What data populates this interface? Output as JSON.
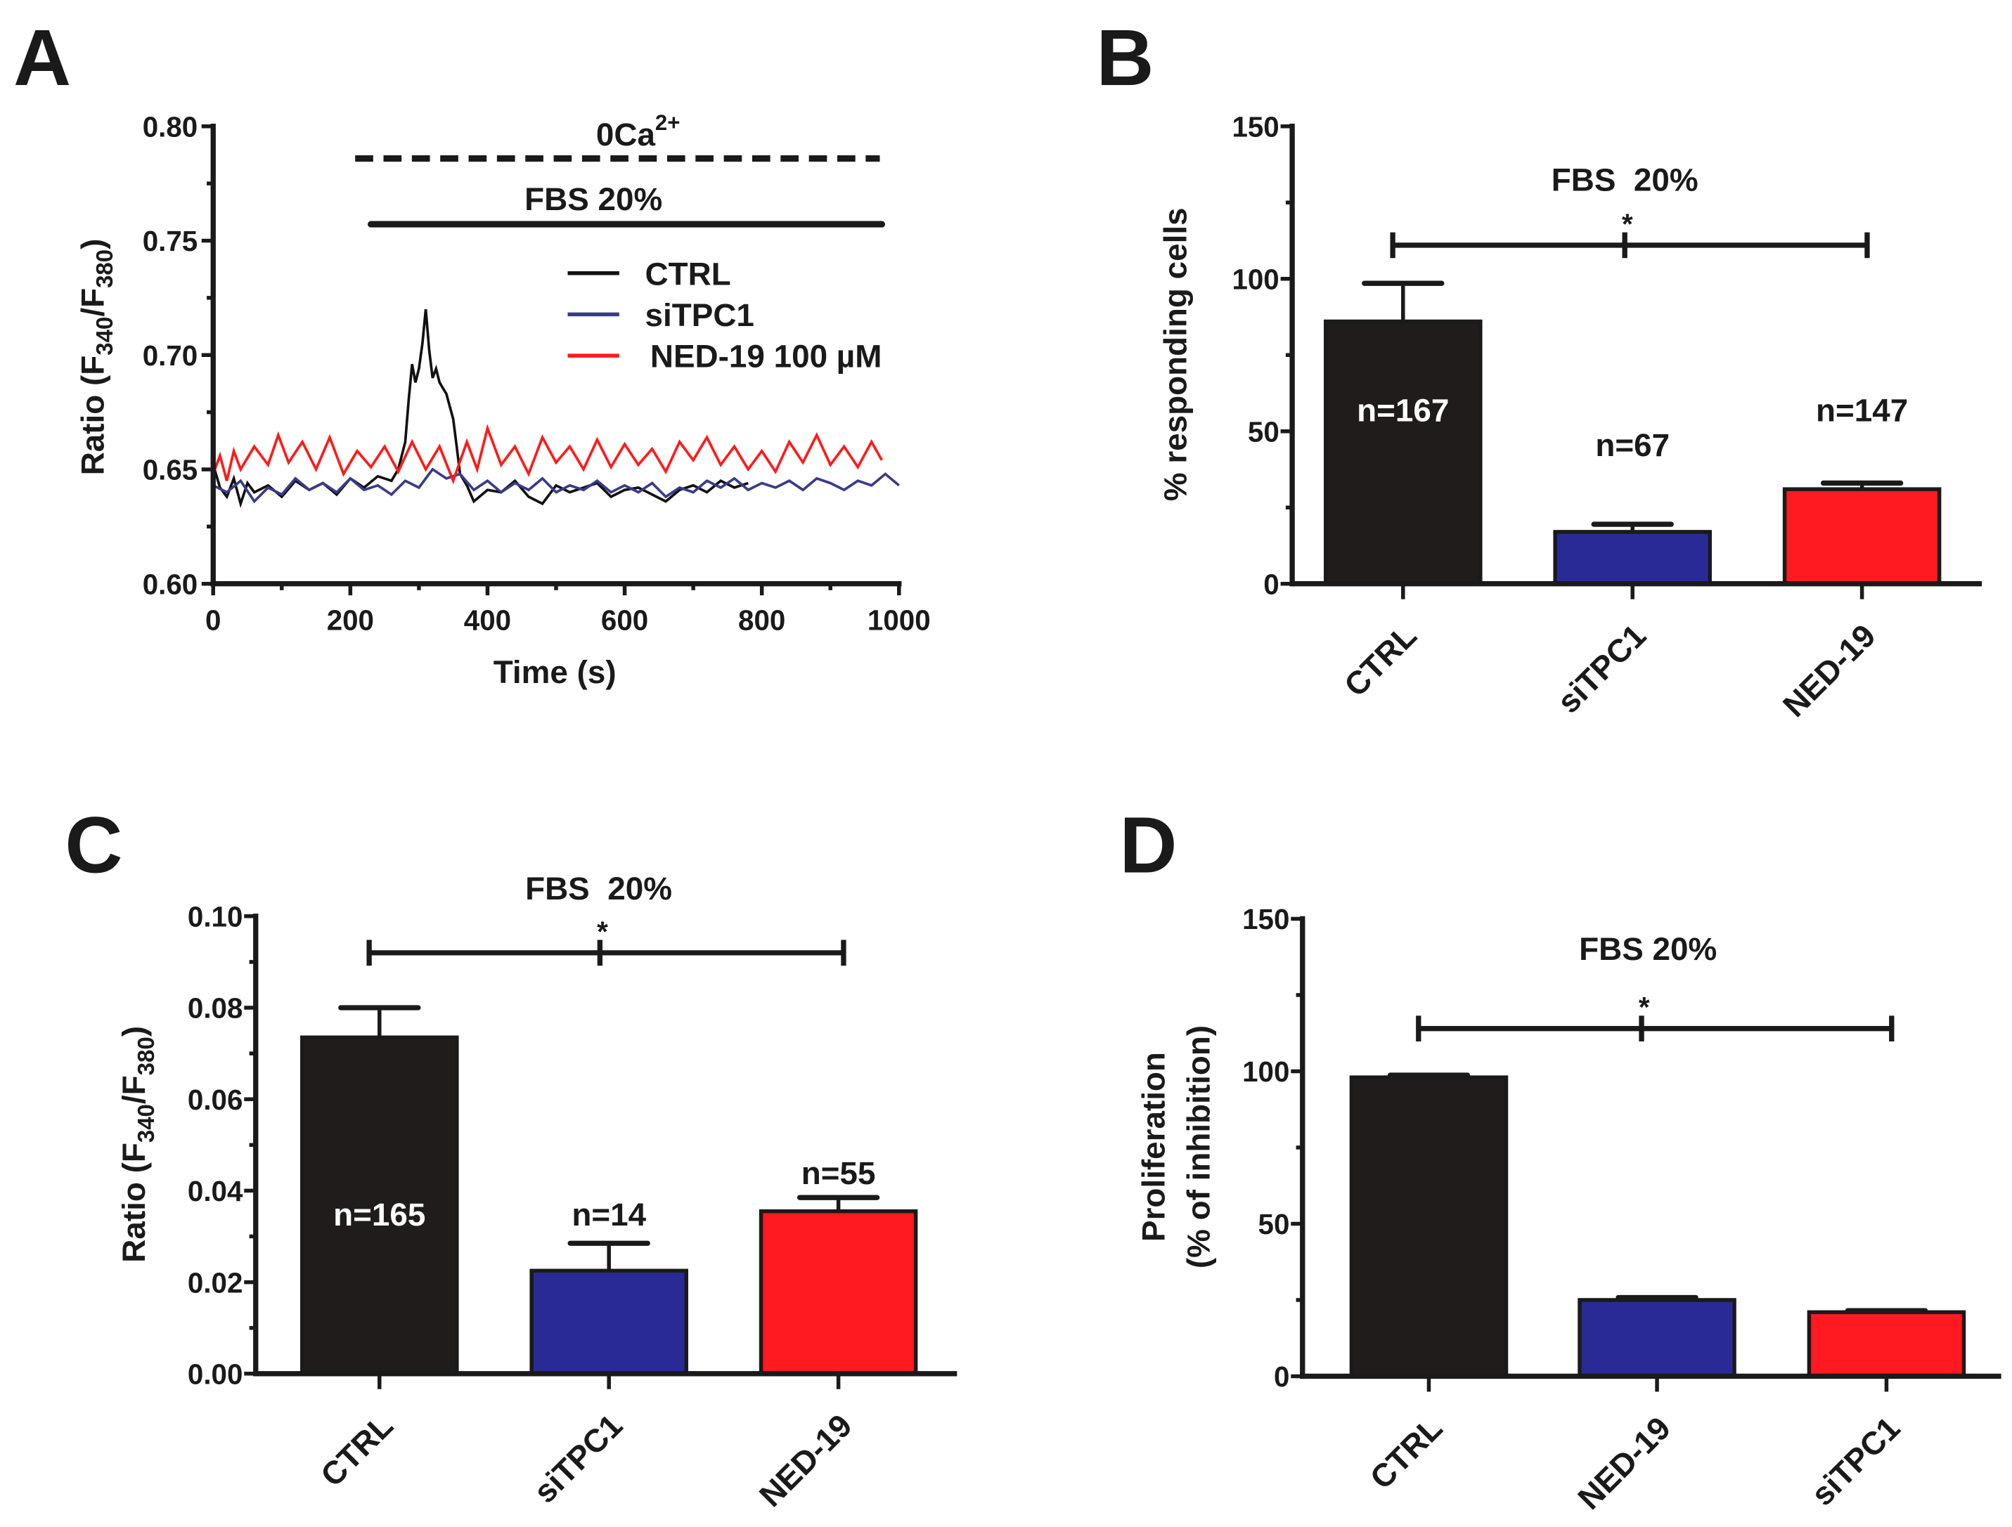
{
  "chart_data": [
    {
      "panel": "A",
      "type": "line",
      "xlabel": "Time (s)",
      "ylabel_parts": [
        "Ratio (F",
        "340",
        "/F",
        "380",
        ")"
      ],
      "xlim": [
        0,
        1000
      ],
      "ylim": [
        0.6,
        0.8
      ],
      "xticks": [
        "0",
        "200",
        "400",
        "600",
        "800",
        "1000"
      ],
      "yticks": [
        "0.60",
        "0.65",
        "0.70",
        "0.75",
        "0.80"
      ],
      "grid": false,
      "legend_placement": "upper-right",
      "annotations": {
        "zero_ca": {
          "label": "0Ca",
          "sup": "2+",
          "style": "dashed",
          "x_range": [
            207,
            972
          ]
        },
        "fbs": {
          "label": "FBS 20%",
          "style": "solid",
          "x_range": [
            230,
            975
          ]
        }
      },
      "series": [
        {
          "name": "CTRL",
          "color": "#111111",
          "points": [
            [
              0,
              0.652
            ],
            [
              10,
              0.642
            ],
            [
              20,
              0.638
            ],
            [
              30,
              0.646
            ],
            [
              40,
              0.635
            ],
            [
              50,
              0.644
            ],
            [
              60,
              0.64
            ],
            [
              80,
              0.643
            ],
            [
              100,
              0.638
            ],
            [
              120,
              0.645
            ],
            [
              140,
              0.641
            ],
            [
              160,
              0.644
            ],
            [
              180,
              0.639
            ],
            [
              200,
              0.646
            ],
            [
              220,
              0.642
            ],
            [
              240,
              0.647
            ],
            [
              260,
              0.645
            ],
            [
              270,
              0.65
            ],
            [
              280,
              0.662
            ],
            [
              285,
              0.68
            ],
            [
              290,
              0.696
            ],
            [
              295,
              0.688
            ],
            [
              300,
              0.694
            ],
            [
              305,
              0.705
            ],
            [
              310,
              0.72
            ],
            [
              315,
              0.702
            ],
            [
              320,
              0.69
            ],
            [
              325,
              0.694
            ],
            [
              330,
              0.688
            ],
            [
              340,
              0.683
            ],
            [
              350,
              0.672
            ],
            [
              355,
              0.66
            ],
            [
              360,
              0.648
            ],
            [
              370,
              0.643
            ],
            [
              380,
              0.636
            ],
            [
              400,
              0.641
            ],
            [
              420,
              0.64
            ],
            [
              440,
              0.645
            ],
            [
              460,
              0.638
            ],
            [
              480,
              0.635
            ],
            [
              500,
              0.643
            ],
            [
              520,
              0.64
            ],
            [
              540,
              0.642
            ],
            [
              560,
              0.644
            ],
            [
              580,
              0.638
            ],
            [
              600,
              0.641
            ],
            [
              620,
              0.642
            ],
            [
              640,
              0.639
            ],
            [
              660,
              0.636
            ],
            [
              680,
              0.641
            ],
            [
              700,
              0.643
            ],
            [
              720,
              0.64
            ],
            [
              740,
              0.645
            ],
            [
              760,
              0.642
            ],
            [
              780,
              0.644
            ]
          ]
        },
        {
          "name": "siTPC1",
          "color": "#3a3a8c",
          "points": [
            [
              0,
              0.643
            ],
            [
              20,
              0.64
            ],
            [
              40,
              0.645
            ],
            [
              60,
              0.636
            ],
            [
              80,
              0.642
            ],
            [
              100,
              0.639
            ],
            [
              120,
              0.646
            ],
            [
              140,
              0.641
            ],
            [
              160,
              0.644
            ],
            [
              180,
              0.64
            ],
            [
              200,
              0.646
            ],
            [
              220,
              0.641
            ],
            [
              240,
              0.643
            ],
            [
              260,
              0.639
            ],
            [
              280,
              0.645
            ],
            [
              300,
              0.642
            ],
            [
              320,
              0.65
            ],
            [
              340,
              0.646
            ],
            [
              360,
              0.648
            ],
            [
              380,
              0.641
            ],
            [
              400,
              0.645
            ],
            [
              420,
              0.64
            ],
            [
              440,
              0.644
            ],
            [
              460,
              0.641
            ],
            [
              480,
              0.646
            ],
            [
              500,
              0.64
            ],
            [
              520,
              0.643
            ],
            [
              540,
              0.641
            ],
            [
              560,
              0.645
            ],
            [
              580,
              0.64
            ],
            [
              600,
              0.643
            ],
            [
              620,
              0.64
            ],
            [
              640,
              0.644
            ],
            [
              660,
              0.638
            ],
            [
              680,
              0.642
            ],
            [
              700,
              0.64
            ],
            [
              720,
              0.645
            ],
            [
              740,
              0.642
            ],
            [
              760,
              0.646
            ],
            [
              780,
              0.641
            ],
            [
              800,
              0.644
            ],
            [
              820,
              0.642
            ],
            [
              840,
              0.645
            ],
            [
              860,
              0.641
            ],
            [
              880,
              0.646
            ],
            [
              900,
              0.644
            ],
            [
              920,
              0.641
            ],
            [
              940,
              0.645
            ],
            [
              960,
              0.643
            ],
            [
              980,
              0.648
            ],
            [
              1000,
              0.643
            ]
          ]
        },
        {
          "name": "NED-19 100 µM",
          "color": "#ff1a1a",
          "points": [
            [
              0,
              0.648
            ],
            [
              10,
              0.656
            ],
            [
              20,
              0.645
            ],
            [
              30,
              0.658
            ],
            [
              40,
              0.65
            ],
            [
              60,
              0.66
            ],
            [
              80,
              0.652
            ],
            [
              95,
              0.665
            ],
            [
              110,
              0.653
            ],
            [
              130,
              0.662
            ],
            [
              150,
              0.65
            ],
            [
              170,
              0.664
            ],
            [
              190,
              0.648
            ],
            [
              210,
              0.658
            ],
            [
              230,
              0.651
            ],
            [
              250,
              0.66
            ],
            [
              270,
              0.649
            ],
            [
              290,
              0.662
            ],
            [
              310,
              0.65
            ],
            [
              330,
              0.66
            ],
            [
              350,
              0.645
            ],
            [
              370,
              0.662
            ],
            [
              385,
              0.65
            ],
            [
              400,
              0.668
            ],
            [
              420,
              0.652
            ],
            [
              440,
              0.66
            ],
            [
              460,
              0.648
            ],
            [
              480,
              0.664
            ],
            [
              500,
              0.653
            ],
            [
              520,
              0.66
            ],
            [
              540,
              0.65
            ],
            [
              560,
              0.663
            ],
            [
              580,
              0.651
            ],
            [
              600,
              0.661
            ],
            [
              620,
              0.652
            ],
            [
              640,
              0.659
            ],
            [
              660,
              0.649
            ],
            [
              680,
              0.662
            ],
            [
              700,
              0.654
            ],
            [
              720,
              0.664
            ],
            [
              740,
              0.652
            ],
            [
              760,
              0.66
            ],
            [
              780,
              0.65
            ],
            [
              800,
              0.658
            ],
            [
              820,
              0.649
            ],
            [
              840,
              0.662
            ],
            [
              860,
              0.653
            ],
            [
              880,
              0.665
            ],
            [
              900,
              0.652
            ],
            [
              920,
              0.66
            ],
            [
              940,
              0.651
            ],
            [
              960,
              0.662
            ],
            [
              975,
              0.654
            ]
          ]
        }
      ]
    },
    {
      "panel": "B",
      "type": "bar",
      "title": "FBS  20%",
      "ylabel": "% responding cells",
      "ylim": [
        0,
        150
      ],
      "yticks": [
        "0",
        "50",
        "100",
        "150"
      ],
      "categories": [
        "CTRL",
        "siTPC1",
        "NED-19"
      ],
      "values": [
        86,
        17,
        31
      ],
      "errors": [
        12.5,
        2.5,
        2
      ],
      "colors": [
        "#201c1c",
        "#2a2a96",
        "#ff1a22"
      ],
      "n_labels": [
        "n=167",
        "n=67",
        "n=147"
      ],
      "significance": {
        "label": "*",
        "level": 111
      }
    },
    {
      "panel": "C",
      "type": "bar",
      "title": "FBS  20%",
      "ylabel_parts": [
        "Ratio (F",
        "340",
        "/F",
        "380",
        ")"
      ],
      "ylim": [
        0,
        0.1
      ],
      "yticks": [
        "0.00",
        "0.02",
        "0.04",
        "0.06",
        "0.08",
        "0.10"
      ],
      "categories": [
        "CTRL",
        "siTPC1",
        "NED-19"
      ],
      "values": [
        0.0735,
        0.0225,
        0.0355
      ],
      "errors": [
        0.0065,
        0.006,
        0.003
      ],
      "colors": [
        "#201c1c",
        "#2a2a96",
        "#ff1a22"
      ],
      "n_labels": [
        "n=165",
        "n=14",
        "n=55"
      ],
      "significance": {
        "label": "*",
        "level": 0.092
      }
    },
    {
      "panel": "D",
      "type": "bar",
      "title": "FBS 20%",
      "ylabel_lines": [
        "Proliferation",
        "(% of inhibition)"
      ],
      "ylim": [
        0,
        150
      ],
      "yticks": [
        "0",
        "50",
        "100",
        "150"
      ],
      "categories": [
        "CTRL",
        "NED-19",
        "siTPC1"
      ],
      "values": [
        98,
        25,
        21
      ],
      "errors": [
        0.7,
        0.8,
        0.5
      ],
      "colors": [
        "#201c1c",
        "#2a2a96",
        "#ff1a22"
      ],
      "significance": {
        "label": "*",
        "level": 114
      }
    }
  ],
  "panel_letters": [
    "A",
    "B",
    "C",
    "D"
  ]
}
